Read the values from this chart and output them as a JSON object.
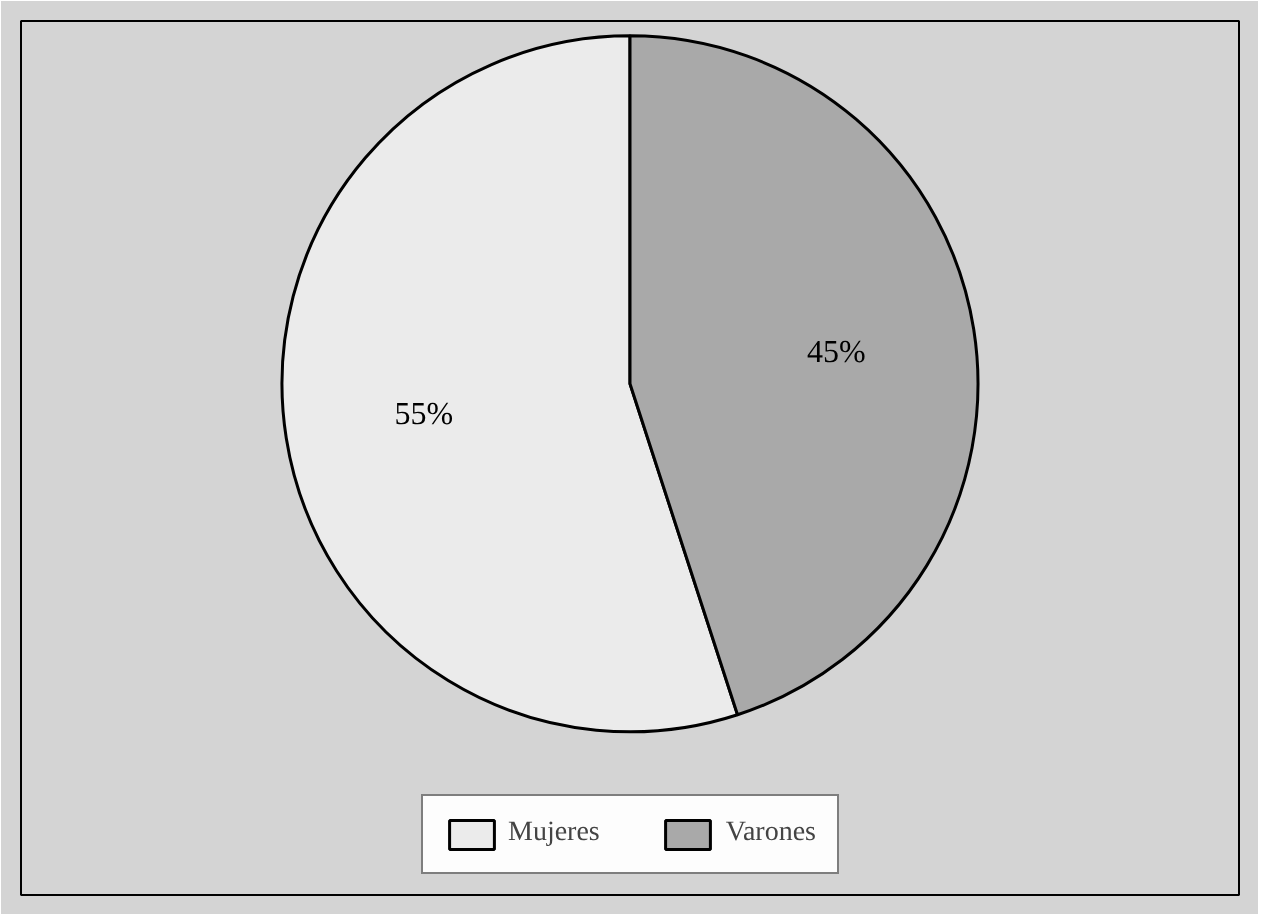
{
  "chart_data": {
    "type": "pie",
    "categories": [
      "Mujeres",
      "Varones"
    ],
    "values": [
      55,
      45
    ],
    "colors": [
      "#ebebeb",
      "#a9a9a9"
    ],
    "value_labels": [
      "55%",
      "45%"
    ],
    "legend": "bottom"
  }
}
